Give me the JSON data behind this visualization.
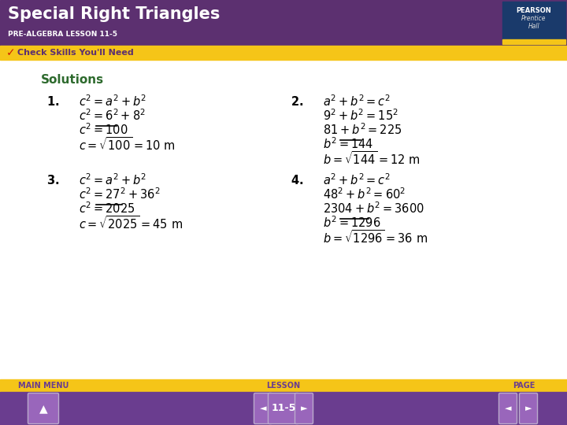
{
  "title": "Special Right Triangles",
  "subtitle": "PRE-ALGEBRA LESSON 11-5",
  "header_bar": "Check Skills You'll Need",
  "solutions_label": "Solutions",
  "bg_header": "#5c3070",
  "bg_yellow": "#f5c518",
  "bg_white": "#ffffff",
  "bg_footer": "#6a3d8f",
  "title_color": "#ffffff",
  "subtitle_color": "#ffffff",
  "solutions_color": "#2d6a2d",
  "body_color": "#000000",
  "footer_text_color": "#f5c518",
  "footer_labels": [
    "MAIN MENU",
    "LESSON",
    "PAGE"
  ],
  "lesson_number": "11-5",
  "pearson_bg": "#1a3a6b",
  "check_color": "#cc2200"
}
